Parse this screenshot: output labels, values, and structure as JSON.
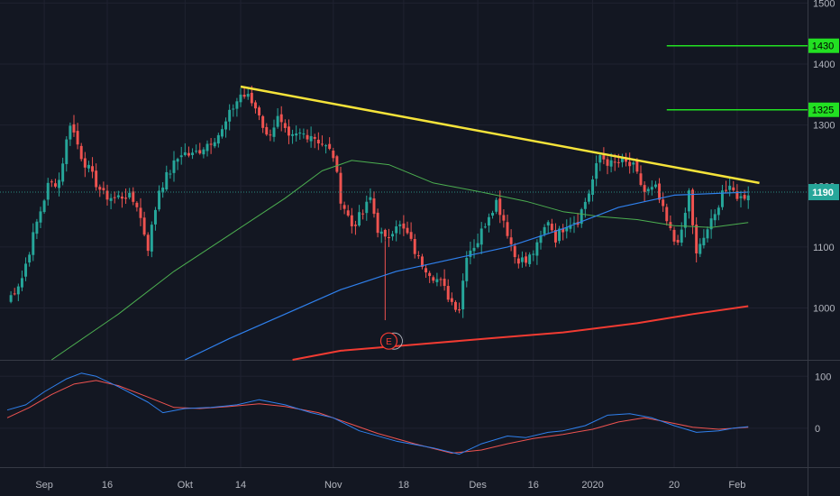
{
  "chart_data": {
    "type": "candlestick",
    "title": "",
    "colors": {
      "background": "#131722",
      "grid": "#1f2230",
      "axis_text": "#b2b5be",
      "up": "#26a69a",
      "down": "#ef5350",
      "trendline": "#f5e33a",
      "level": "#22e022",
      "ma_blue": "#2f80ed",
      "ma_green": "#4caf50",
      "ma_red": "#f23b32",
      "macd": "#2f80ed",
      "signal": "#ef5350"
    },
    "x_ticks": [
      {
        "label": "Sep",
        "i": 10
      },
      {
        "label": "16",
        "i": 27
      },
      {
        "label": "Okt",
        "i": 48
      },
      {
        "label": "14",
        "i": 63
      },
      {
        "label": "Nov",
        "i": 88
      },
      {
        "label": "18",
        "i": 107
      },
      {
        "label": "Des",
        "i": 127
      },
      {
        "label": "16",
        "i": 142
      },
      {
        "label": "2020",
        "i": 158
      },
      {
        "label": "20",
        "i": 180
      },
      {
        "label": "Feb",
        "i": 197
      }
    ],
    "x_range": [
      0,
      216
    ],
    "price_axis": {
      "ylim": [
        915,
        1505
      ],
      "ticks": [
        1000,
        1100,
        1200,
        1300,
        1400,
        1500
      ]
    },
    "current_price": {
      "label": "1190",
      "value": 1190
    },
    "levels": [
      {
        "label": "1430",
        "value": 1430,
        "from_i": 178
      },
      {
        "label": "1325",
        "value": 1325,
        "from_i": 178
      }
    ],
    "trendline": {
      "from": {
        "i": 63,
        "value": 1363
      },
      "to": {
        "i": 203,
        "value": 1205
      }
    },
    "earnings_marker": {
      "label": "E",
      "i": 103,
      "value": 928
    },
    "anchors": [
      {
        "i": 0,
        "v": 1010
      },
      {
        "i": 4,
        "v": 1050
      },
      {
        "i": 8,
        "v": 1140
      },
      {
        "i": 11,
        "v": 1200
      },
      {
        "i": 14,
        "v": 1210
      },
      {
        "i": 17,
        "v": 1305
      },
      {
        "i": 20,
        "v": 1250
      },
      {
        "i": 23,
        "v": 1215
      },
      {
        "i": 26,
        "v": 1185
      },
      {
        "i": 29,
        "v": 1180
      },
      {
        "i": 32,
        "v": 1185
      },
      {
        "i": 35,
        "v": 1170
      },
      {
        "i": 38,
        "v": 1100
      },
      {
        "i": 41,
        "v": 1195
      },
      {
        "i": 44,
        "v": 1225
      },
      {
        "i": 47,
        "v": 1255
      },
      {
        "i": 50,
        "v": 1250
      },
      {
        "i": 53,
        "v": 1265
      },
      {
        "i": 56,
        "v": 1280
      },
      {
        "i": 58,
        "v": 1290
      },
      {
        "i": 61,
        "v": 1330
      },
      {
        "i": 63,
        "v": 1350
      },
      {
        "i": 65,
        "v": 1345
      },
      {
        "i": 68,
        "v": 1320
      },
      {
        "i": 70,
        "v": 1280
      },
      {
        "i": 73,
        "v": 1310
      },
      {
        "i": 76,
        "v": 1275
      },
      {
        "i": 79,
        "v": 1285
      },
      {
        "i": 82,
        "v": 1285
      },
      {
        "i": 85,
        "v": 1270
      },
      {
        "i": 88,
        "v": 1250
      },
      {
        "i": 90,
        "v": 1180
      },
      {
        "i": 93,
        "v": 1135
      },
      {
        "i": 96,
        "v": 1155
      },
      {
        "i": 98,
        "v": 1180
      },
      {
        "i": 100,
        "v": 1130
      },
      {
        "i": 102,
        "v": 1110
      },
      {
        "i": 105,
        "v": 1140
      },
      {
        "i": 108,
        "v": 1120
      },
      {
        "i": 111,
        "v": 1080
      },
      {
        "i": 114,
        "v": 1060
      },
      {
        "i": 117,
        "v": 1040
      },
      {
        "i": 120,
        "v": 1010
      },
      {
        "i": 122,
        "v": 1000
      },
      {
        "i": 124,
        "v": 1090
      },
      {
        "i": 127,
        "v": 1110
      },
      {
        "i": 130,
        "v": 1155
      },
      {
        "i": 132,
        "v": 1175
      },
      {
        "i": 134,
        "v": 1145
      },
      {
        "i": 137,
        "v": 1085
      },
      {
        "i": 140,
        "v": 1075
      },
      {
        "i": 143,
        "v": 1100
      },
      {
        "i": 146,
        "v": 1145
      },
      {
        "i": 148,
        "v": 1115
      },
      {
        "i": 151,
        "v": 1140
      },
      {
        "i": 154,
        "v": 1145
      },
      {
        "i": 157,
        "v": 1190
      },
      {
        "i": 160,
        "v": 1250
      },
      {
        "i": 163,
        "v": 1235
      },
      {
        "i": 166,
        "v": 1240
      },
      {
        "i": 169,
        "v": 1230
      },
      {
        "i": 172,
        "v": 1190
      },
      {
        "i": 175,
        "v": 1195
      },
      {
        "i": 178,
        "v": 1140
      },
      {
        "i": 180,
        "v": 1110
      },
      {
        "i": 182,
        "v": 1120
      },
      {
        "i": 184,
        "v": 1190
      },
      {
        "i": 186,
        "v": 1085
      },
      {
        "i": 189,
        "v": 1130
      },
      {
        "i": 191,
        "v": 1150
      },
      {
        "i": 193,
        "v": 1195
      },
      {
        "i": 196,
        "v": 1190
      },
      {
        "i": 198,
        "v": 1180
      },
      {
        "i": 200,
        "v": 1190
      }
    ],
    "ma_blue": [
      {
        "i": 48,
        "v": 915
      },
      {
        "i": 60,
        "v": 950
      },
      {
        "i": 75,
        "v": 990
      },
      {
        "i": 90,
        "v": 1030
      },
      {
        "i": 105,
        "v": 1060
      },
      {
        "i": 120,
        "v": 1080
      },
      {
        "i": 135,
        "v": 1100
      },
      {
        "i": 150,
        "v": 1130
      },
      {
        "i": 165,
        "v": 1165
      },
      {
        "i": 180,
        "v": 1185
      },
      {
        "i": 200,
        "v": 1190
      }
    ],
    "ma_green": [
      {
        "i": 12,
        "v": 915
      },
      {
        "i": 30,
        "v": 990
      },
      {
        "i": 45,
        "v": 1060
      },
      {
        "i": 60,
        "v": 1120
      },
      {
        "i": 75,
        "v": 1180
      },
      {
        "i": 85,
        "v": 1225
      },
      {
        "i": 93,
        "v": 1242
      },
      {
        "i": 103,
        "v": 1235
      },
      {
        "i": 115,
        "v": 1205
      },
      {
        "i": 128,
        "v": 1190
      },
      {
        "i": 140,
        "v": 1175
      },
      {
        "i": 150,
        "v": 1158
      },
      {
        "i": 160,
        "v": 1150
      },
      {
        "i": 170,
        "v": 1145
      },
      {
        "i": 180,
        "v": 1135
      },
      {
        "i": 190,
        "v": 1132
      },
      {
        "i": 200,
        "v": 1140
      }
    ],
    "ma_red": [
      {
        "i": 77,
        "v": 915
      },
      {
        "i": 90,
        "v": 930
      },
      {
        "i": 110,
        "v": 940
      },
      {
        "i": 130,
        "v": 950
      },
      {
        "i": 150,
        "v": 960
      },
      {
        "i": 170,
        "v": 975
      },
      {
        "i": 185,
        "v": 990
      },
      {
        "i": 200,
        "v": 1003
      }
    ],
    "indicator_axis": {
      "ylim": [
        -75,
        130
      ],
      "ticks": [
        0,
        100
      ]
    },
    "macd": [
      {
        "i": 0,
        "v": 35
      },
      {
        "i": 5,
        "v": 45
      },
      {
        "i": 10,
        "v": 70
      },
      {
        "i": 16,
        "v": 95
      },
      {
        "i": 20,
        "v": 106
      },
      {
        "i": 24,
        "v": 100
      },
      {
        "i": 30,
        "v": 80
      },
      {
        "i": 38,
        "v": 50
      },
      {
        "i": 42,
        "v": 30
      },
      {
        "i": 48,
        "v": 38
      },
      {
        "i": 55,
        "v": 40
      },
      {
        "i": 62,
        "v": 45
      },
      {
        "i": 68,
        "v": 55
      },
      {
        "i": 75,
        "v": 45
      },
      {
        "i": 82,
        "v": 30
      },
      {
        "i": 88,
        "v": 20
      },
      {
        "i": 95,
        "v": -5
      },
      {
        "i": 105,
        "v": -25
      },
      {
        "i": 115,
        "v": -38
      },
      {
        "i": 122,
        "v": -50
      },
      {
        "i": 128,
        "v": -30
      },
      {
        "i": 135,
        "v": -15
      },
      {
        "i": 140,
        "v": -18
      },
      {
        "i": 146,
        "v": -8
      },
      {
        "i": 150,
        "v": -5
      },
      {
        "i": 156,
        "v": 5
      },
      {
        "i": 162,
        "v": 25
      },
      {
        "i": 168,
        "v": 28
      },
      {
        "i": 174,
        "v": 20
      },
      {
        "i": 180,
        "v": 5
      },
      {
        "i": 186,
        "v": -8
      },
      {
        "i": 192,
        "v": -5
      },
      {
        "i": 196,
        "v": 0
      },
      {
        "i": 200,
        "v": 3
      }
    ],
    "signal": [
      {
        "i": 0,
        "v": 20
      },
      {
        "i": 6,
        "v": 40
      },
      {
        "i": 12,
        "v": 65
      },
      {
        "i": 18,
        "v": 85
      },
      {
        "i": 24,
        "v": 92
      },
      {
        "i": 30,
        "v": 82
      },
      {
        "i": 38,
        "v": 60
      },
      {
        "i": 45,
        "v": 40
      },
      {
        "i": 52,
        "v": 38
      },
      {
        "i": 60,
        "v": 42
      },
      {
        "i": 68,
        "v": 47
      },
      {
        "i": 75,
        "v": 42
      },
      {
        "i": 84,
        "v": 30
      },
      {
        "i": 92,
        "v": 10
      },
      {
        "i": 100,
        "v": -10
      },
      {
        "i": 110,
        "v": -30
      },
      {
        "i": 120,
        "v": -48
      },
      {
        "i": 128,
        "v": -42
      },
      {
        "i": 135,
        "v": -30
      },
      {
        "i": 142,
        "v": -20
      },
      {
        "i": 150,
        "v": -12
      },
      {
        "i": 158,
        "v": -2
      },
      {
        "i": 165,
        "v": 12
      },
      {
        "i": 172,
        "v": 20
      },
      {
        "i": 178,
        "v": 12
      },
      {
        "i": 185,
        "v": 2
      },
      {
        "i": 192,
        "v": -2
      },
      {
        "i": 200,
        "v": 2
      }
    ]
  }
}
